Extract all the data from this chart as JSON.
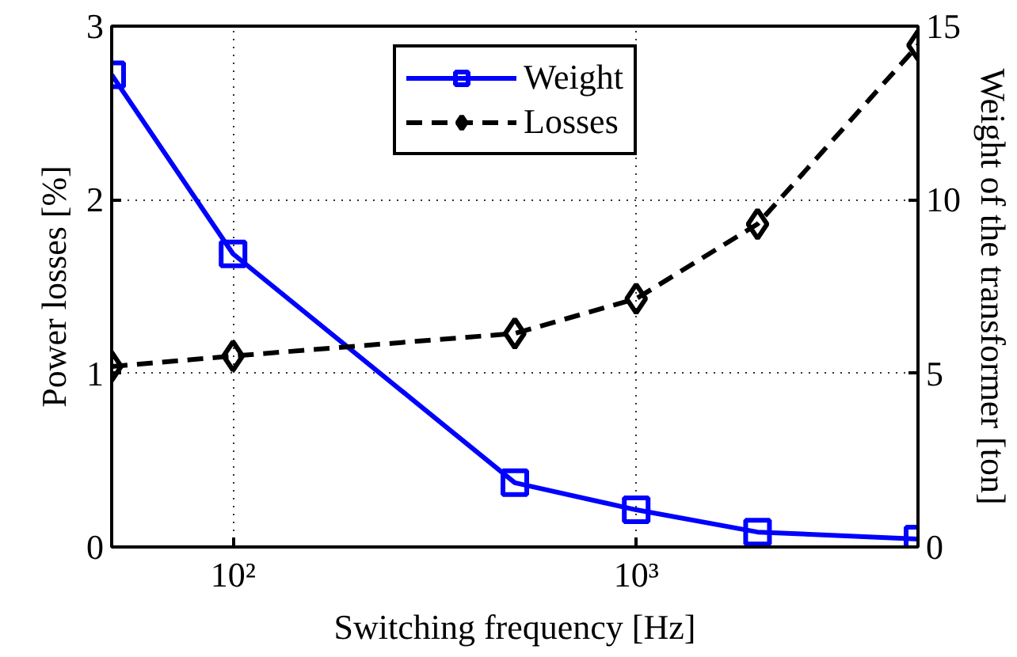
{
  "chart_data": {
    "type": "line",
    "xlabel": "Switching frequency [Hz]",
    "ylabel": "Power losses [%]",
    "y2label": "Weight of the transformer [ton]",
    "x": [
      50,
      100,
      500,
      1000,
      2000,
      5000
    ],
    "log": "x",
    "xlim": [
      50,
      5000
    ],
    "xticks": [
      {
        "value": 100,
        "label": "10²"
      },
      {
        "value": 1000,
        "label": "10³"
      }
    ],
    "ylim": [
      0,
      3
    ],
    "yticks": [
      0,
      1,
      2,
      3
    ],
    "y2lim": [
      0,
      15
    ],
    "y2ticks": [
      0,
      5,
      10,
      15
    ],
    "grid": true,
    "legend": "top",
    "series": [
      {
        "name": "Weight",
        "color": "#0000ff",
        "axis": "y2",
        "marker": "square",
        "line_style": "solid",
        "values": [
          13.6,
          8.44,
          1.85,
          1.07,
          0.43,
          0.23
        ]
      },
      {
        "name": "Losses",
        "color": "#000000",
        "axis": "y",
        "marker": "diamond",
        "line_style": "dashed",
        "values": [
          1.04,
          1.1,
          1.23,
          1.43,
          1.86,
          2.89
        ]
      }
    ]
  }
}
